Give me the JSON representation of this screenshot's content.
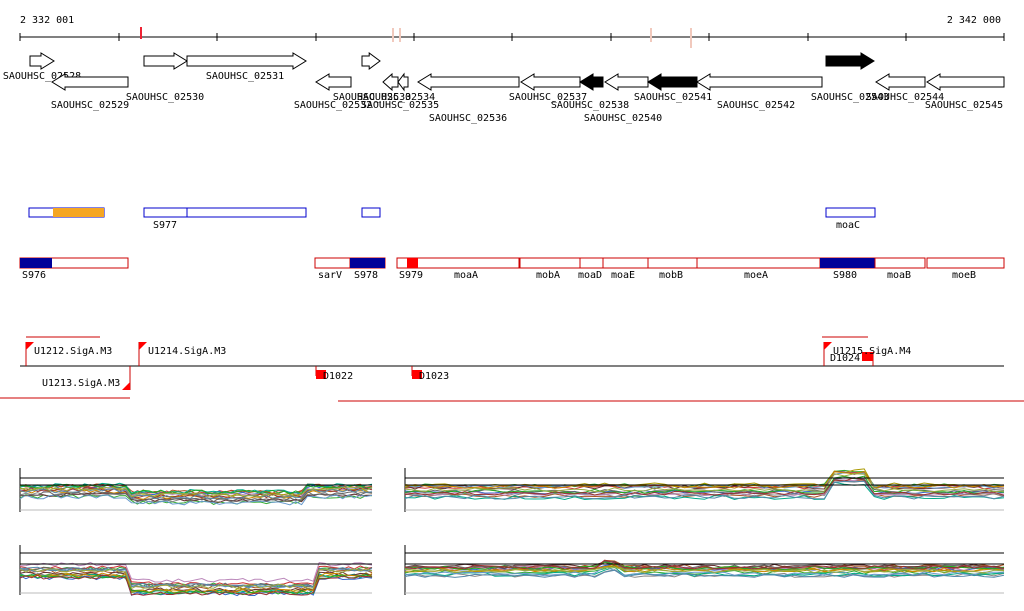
{
  "axis": {
    "start_label": "2 332 001",
    "end_label": "2 342 000"
  },
  "colors": {
    "gene_outline": "#000000",
    "gene_fill_highlight": "#000000",
    "blue_feature": "#0000cc",
    "blue_fill": "#000099",
    "orange_fill": "#f5a623",
    "red_feature": "#cc0000",
    "red_fill": "#ff0000"
  },
  "genes": [
    {
      "label": "SAOUHSC_02528",
      "strand": "+",
      "filled": false
    },
    {
      "label": "SAOUHSC_02529",
      "strand": "-",
      "filled": false
    },
    {
      "label": "SAOUHSC_02530",
      "strand": "+",
      "filled": false
    },
    {
      "label": "SAOUHSC_02531",
      "strand": "+",
      "filled": false
    },
    {
      "label": "SAOUHSC_02532",
      "strand": "-",
      "filled": false
    },
    {
      "label": "SAOUHSC_02533",
      "strand": "+",
      "filled": false
    },
    {
      "label": "SAOUHSC_02534",
      "strand": "-",
      "filled": false
    },
    {
      "label": "SAOUHSC_02535",
      "strand": "-",
      "filled": false
    },
    {
      "label": "SAOUHSC_02536",
      "strand": "-",
      "filled": false
    },
    {
      "label": "SAOUHSC_02537",
      "strand": "-",
      "filled": false
    },
    {
      "label": "SAOUHSC_02538",
      "strand": "-",
      "filled": true
    },
    {
      "label": "SAOUHSC_02540",
      "strand": "-",
      "filled": false
    },
    {
      "label": "SAOUHSC_02541",
      "strand": "-",
      "filled": true
    },
    {
      "label": "SAOUHSC_02542",
      "strand": "-",
      "filled": false
    },
    {
      "label": "SAOUHSC_02543",
      "strand": "+",
      "filled": true
    },
    {
      "label": "SAOUHSC_02544",
      "strand": "-",
      "filled": false
    },
    {
      "label": "SAOUHSC_02545",
      "strand": "-",
      "filled": false
    }
  ],
  "blue_track": [
    {
      "label": ""
    },
    {
      "label": "S977"
    },
    {
      "label": ""
    },
    {
      "label": ""
    },
    {
      "label": "moaC"
    }
  ],
  "red_track": [
    {
      "label": "S976"
    },
    {
      "label": "sarV"
    },
    {
      "label": "S978"
    },
    {
      "label": "S979"
    },
    {
      "label": "moaA"
    },
    {
      "label": "mobA"
    },
    {
      "label": "moaD"
    },
    {
      "label": "moaE"
    },
    {
      "label": "mobB"
    },
    {
      "label": "moeA"
    },
    {
      "label": "S980"
    },
    {
      "label": "moaB"
    },
    {
      "label": "moeB"
    }
  ],
  "promoters": [
    {
      "label": "U1212.SigA.M3"
    },
    {
      "label": "U1213.SigA.M3"
    },
    {
      "label": "U1214.SigA.M3"
    },
    {
      "label": "D1022"
    },
    {
      "label": "D1023"
    },
    {
      "label": "U1215.SigA.M4"
    },
    {
      "label": "D1024"
    }
  ]
}
